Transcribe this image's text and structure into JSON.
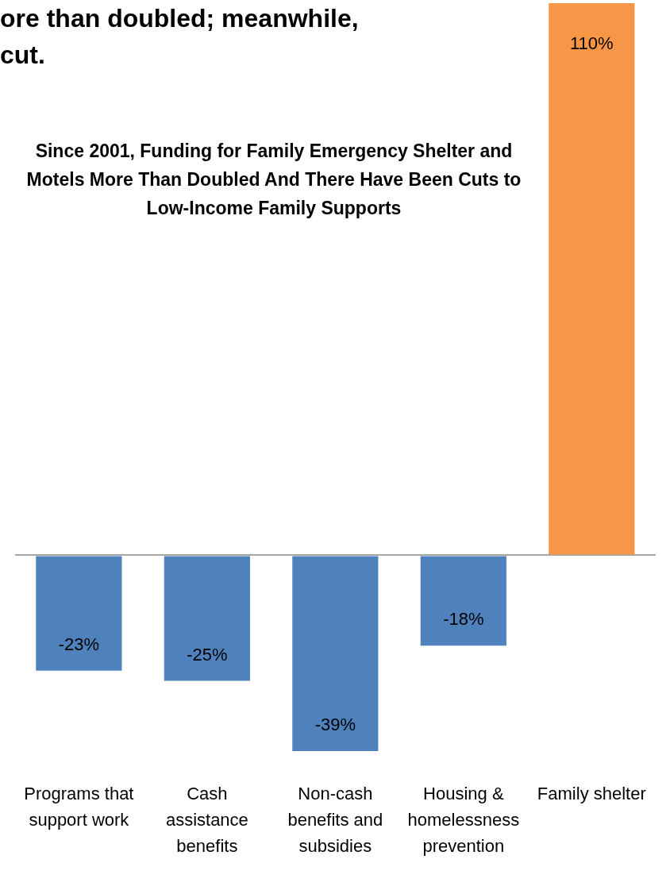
{
  "chart_data": {
    "type": "bar",
    "title": "Since 2001, Funding for Family  Emergency Shelter and Motels More Than Doubled And There Have Been Cuts to Low-Income Family Supports",
    "annotations": [
      "ore than doubled; meanwhile,\ncut."
    ],
    "categories": [
      "Programs that\nsupport work",
      "Cash\nassistance\nbenefits",
      "Non-cash\nbenefits and\nsubsidies",
      "Housing &\nhomelessness\nprevention",
      "Family shelter"
    ],
    "values": [
      -23,
      -25,
      -39,
      -18,
      110
    ],
    "colors": [
      "#4f81bd",
      "#4f81bd",
      "#4f81bd",
      "#4f81bd",
      "#f79646"
    ],
    "value_labels": [
      "-23%",
      "-25%",
      "-39%",
      "-18%",
      "110%"
    ],
    "legend": false
  }
}
